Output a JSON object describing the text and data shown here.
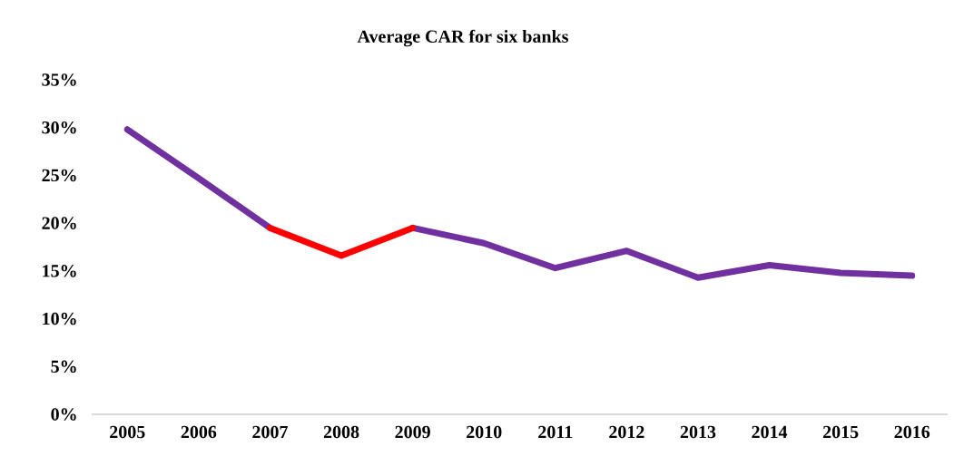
{
  "chart_data": {
    "type": "line",
    "title": "Average CAR for six banks",
    "categories": [
      "2005",
      "2006",
      "2007",
      "2008",
      "2009",
      "2010",
      "2011",
      "2012",
      "2013",
      "2014",
      "2015",
      "2016"
    ],
    "series": [
      {
        "color": "#7030a0",
        "values": [
          29.8,
          24.7,
          19.5,
          null,
          19.5,
          17.9,
          15.3,
          17.1,
          14.3,
          15.6,
          14.8,
          14.5
        ]
      },
      {
        "color": "#ff0000",
        "values": [
          null,
          null,
          19.5,
          16.6,
          19.5,
          null,
          null,
          null,
          null,
          null,
          null,
          null
        ]
      }
    ],
    "ylim": [
      0,
      35
    ],
    "yticks": [
      {
        "value": 0,
        "label": "0%"
      },
      {
        "value": 5,
        "label": "5%"
      },
      {
        "value": 10,
        "label": "10%"
      },
      {
        "value": 15,
        "label": "15%"
      },
      {
        "value": 20,
        "label": "20%"
      },
      {
        "value": 25,
        "label": "25%"
      },
      {
        "value": 30,
        "label": "30%"
      },
      {
        "value": 35,
        "label": "35%"
      }
    ],
    "grid": false,
    "legend": false,
    "marker": "none",
    "line_style": "solid"
  }
}
